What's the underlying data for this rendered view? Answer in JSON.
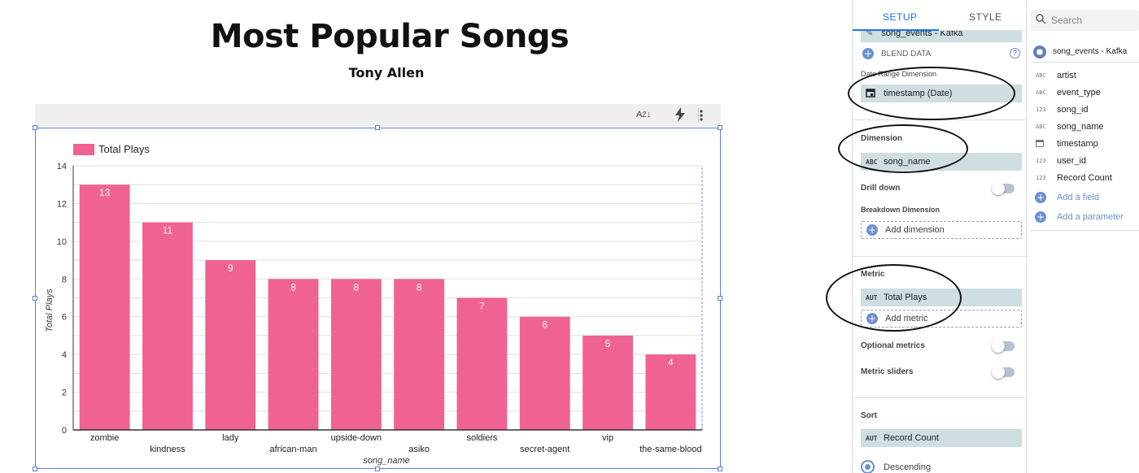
{
  "report": {
    "title": "Most Popular Songs",
    "subtitle": "Tony Allen"
  },
  "chart_toolbar": {
    "sort_icon": "sort-az-icon",
    "optimize_icon": "lightning-icon",
    "more_icon": "more-vert-icon",
    "sort_label": "A͡Z"
  },
  "chart_data": {
    "type": "bar",
    "categories": [
      "zombie",
      "kindness",
      "lady",
      "african-man",
      "upside-down",
      "asiko",
      "soldiers",
      "secret-agent",
      "vip",
      "the-same-blood"
    ],
    "series": [
      {
        "name": "Total Plays",
        "values": [
          13,
          11,
          9,
          8,
          8,
          8,
          7,
          6,
          5,
          4
        ],
        "color": "#f06292"
      }
    ],
    "xlabel": "song_name",
    "ylabel": "Total Plays",
    "ylim": [
      0,
      14
    ],
    "yticks": [
      0,
      2,
      4,
      6,
      8,
      10,
      12,
      14
    ],
    "legend": "top-left",
    "grid": true
  },
  "panel": {
    "tabs": [
      "SETUP",
      "STYLE"
    ],
    "active_tab": "SETUP",
    "data_source": "song_events - Kafka",
    "blend_data": "BLEND DATA",
    "date_range_label": "Date Range Dimension",
    "date_range_value": "timestamp (Date)",
    "dimension_label": "Dimension",
    "dimension_tag": "ABC",
    "dimension_value": "song_name",
    "drill_down": "Drill down",
    "breakdown_label": "Breakdown Dimension",
    "add_dimension": "Add dimension",
    "metric_label": "Metric",
    "metric_tag": "AUT",
    "metric_value": "Total Plays",
    "add_metric": "Add metric",
    "optional_metrics": "Optional metrics",
    "metric_sliders": "Metric sliders",
    "sort_label": "Sort",
    "sort_tag": "AUT",
    "sort_value": "Record Count",
    "descending": "Descending"
  },
  "fields": {
    "search_placeholder": "Search",
    "source_name": "song_events - Kafka",
    "items": [
      {
        "type": "ABC",
        "name": "artist"
      },
      {
        "type": "ABC",
        "name": "event_type"
      },
      {
        "type": "123",
        "name": "song_id"
      },
      {
        "type": "ABC",
        "name": "song_name"
      },
      {
        "type": "cal",
        "name": "timestamp"
      },
      {
        "type": "123",
        "name": "user_id"
      },
      {
        "type": "123",
        "name": "Record Count"
      }
    ],
    "add_field": "Add a field",
    "add_parameter": "Add a parameter"
  }
}
